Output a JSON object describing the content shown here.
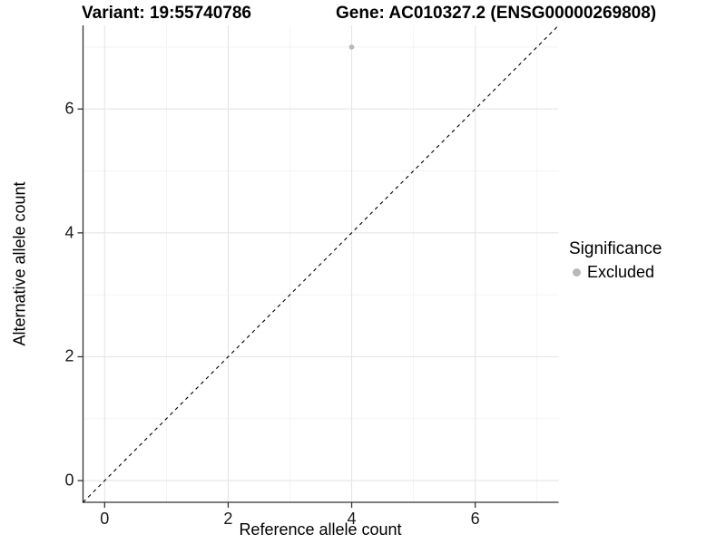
{
  "header": {
    "variant_title": "Variant: 19:55740786",
    "gene_title": "Gene: AC010327.2 (ENSG00000269808)"
  },
  "chart_data": {
    "type": "scatter",
    "title": "Variant: 19:55740786  /  Gene: AC010327.2 (ENSG00000269808)",
    "xlabel": "Reference allele count",
    "ylabel": "Alternative allele count",
    "xlim": [
      -0.35,
      7.35
    ],
    "ylim": [
      -0.35,
      7.35
    ],
    "x_ticks": [
      0,
      2,
      4,
      6
    ],
    "y_ticks": [
      0,
      2,
      4,
      6
    ],
    "x_minor_ticks": [
      1,
      3,
      5,
      7
    ],
    "y_minor_ticks": [
      1,
      3,
      5,
      7
    ],
    "grid": "major+minor",
    "series": [
      {
        "name": "Excluded",
        "color": "#b8b8b8",
        "points": [
          {
            "x": 4,
            "y": 7
          }
        ]
      }
    ],
    "reference_line": {
      "type": "identity",
      "linetype": "dashed",
      "color": "#000000"
    },
    "legend": {
      "title": "Significance",
      "position": "right",
      "entries": [
        {
          "label": "Excluded",
          "color": "#b8b8b8"
        }
      ]
    }
  },
  "colors": {
    "background": "#ffffff",
    "grid_major": "#e6e6e6",
    "grid_minor": "#f2f2f2",
    "axis": "#333333",
    "tick_text": "#1a1a1a"
  }
}
